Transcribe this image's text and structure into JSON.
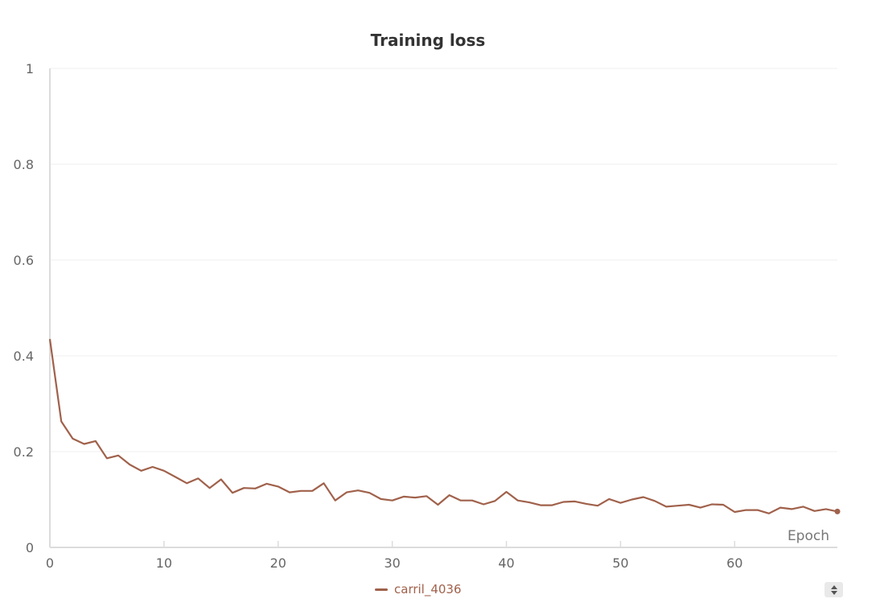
{
  "chart_data": {
    "type": "line",
    "title": "Training loss",
    "xlabel": "Epoch",
    "ylabel": "",
    "xlim": [
      0,
      69
    ],
    "ylim": [
      0,
      1
    ],
    "x_ticks": [
      0,
      10,
      20,
      30,
      40,
      50,
      60
    ],
    "y_ticks": [
      0,
      0.2,
      0.4,
      0.6,
      0.8,
      1
    ],
    "y_tick_labels": [
      "0",
      "0.2",
      "0.4",
      "0.6",
      "0.8",
      "1"
    ],
    "grid": "horizontal",
    "legend_position": "bottom-center",
    "series": [
      {
        "name": "carril_4036",
        "color": "#a0614b",
        "x": [
          0,
          1,
          2,
          3,
          4,
          5,
          6,
          7,
          8,
          9,
          10,
          11,
          12,
          13,
          14,
          15,
          16,
          17,
          18,
          19,
          20,
          21,
          22,
          23,
          24,
          25,
          26,
          27,
          28,
          29,
          30,
          31,
          32,
          33,
          34,
          35,
          36,
          37,
          38,
          39,
          40,
          41,
          42,
          43,
          44,
          45,
          46,
          47,
          48,
          49,
          50,
          51,
          52,
          53,
          54,
          55,
          56,
          57,
          58,
          59,
          60,
          61,
          62,
          63,
          64,
          65,
          66,
          67,
          68,
          69
        ],
        "values": [
          0.435,
          0.263,
          0.227,
          0.216,
          0.222,
          0.186,
          0.192,
          0.173,
          0.16,
          0.168,
          0.16,
          0.147,
          0.134,
          0.144,
          0.124,
          0.142,
          0.114,
          0.124,
          0.123,
          0.133,
          0.127,
          0.115,
          0.118,
          0.118,
          0.134,
          0.098,
          0.115,
          0.119,
          0.114,
          0.101,
          0.098,
          0.106,
          0.104,
          0.107,
          0.089,
          0.109,
          0.098,
          0.098,
          0.09,
          0.097,
          0.116,
          0.098,
          0.094,
          0.088,
          0.088,
          0.095,
          0.096,
          0.091,
          0.087,
          0.101,
          0.093,
          0.1,
          0.105,
          0.097,
          0.085,
          0.087,
          0.089,
          0.083,
          0.09,
          0.089,
          0.074,
          0.078,
          0.078,
          0.071,
          0.083,
          0.08,
          0.085,
          0.076,
          0.08,
          0.075
        ]
      }
    ]
  },
  "legend": {
    "toggle_icon": "sort-updown-icon"
  }
}
